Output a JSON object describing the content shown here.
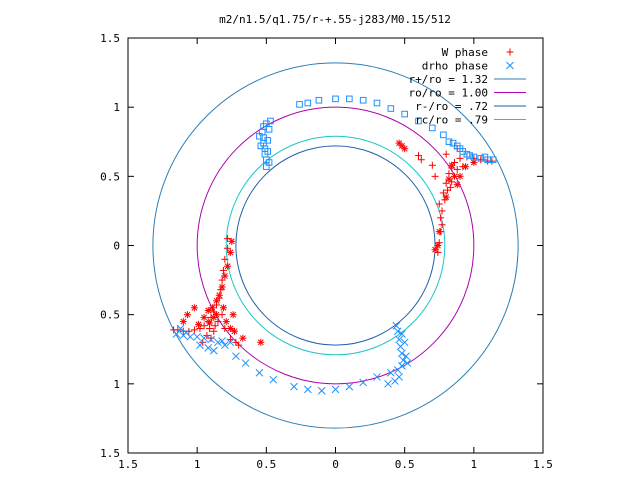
{
  "chart_data": {
    "type": "scatter",
    "title": "m2/n1.5/q1.75/r-+.55-j283/M0.15/512",
    "xlabel": "",
    "ylabel": "",
    "xlim": [
      -1.5,
      1.5
    ],
    "ylim": [
      -1.5,
      1.5
    ],
    "grid": false,
    "legend_position": "top-right",
    "x_ticks": [
      {
        "value": -1.5,
        "label": "1.5"
      },
      {
        "value": -1.0,
        "label": "1"
      },
      {
        "value": -0.5,
        "label": "0.5"
      },
      {
        "value": 0.0,
        "label": "0"
      },
      {
        "value": 0.5,
        "label": "0.5"
      },
      {
        "value": 1.0,
        "label": "1"
      },
      {
        "value": 1.5,
        "label": "1.5"
      }
    ],
    "y_ticks": [
      {
        "value": 1.5,
        "label": "1.5"
      },
      {
        "value": 1.0,
        "label": "1"
      },
      {
        "value": 0.5,
        "label": "0.5"
      },
      {
        "value": 0.0,
        "label": "0"
      },
      {
        "value": -0.5,
        "label": "0.5"
      },
      {
        "value": -1.0,
        "label": "1"
      },
      {
        "value": -1.5,
        "label": "1.5"
      }
    ],
    "circles": [
      {
        "name": "r+/ro = 1.32",
        "radius": 1.32,
        "color": "#2c7fb8"
      },
      {
        "name": "ro/ro = 1.00",
        "radius": 1.0,
        "color": "#b000b0"
      },
      {
        "name": "r-/ro = .72",
        "radius": 0.72,
        "color": "#1f5fa8"
      },
      {
        "name": "rc/ro = .79",
        "radius": 0.79,
        "color": "#19c8c8"
      }
    ],
    "series": [
      {
        "name": "W phase",
        "marker": "plus",
        "color": "#ff0000",
        "points": [
          [
            -0.78,
            0.05
          ],
          [
            -0.78,
            -0.02
          ],
          [
            -0.8,
            -0.1
          ],
          [
            -0.81,
            -0.18
          ],
          [
            -0.82,
            -0.25
          ],
          [
            -0.83,
            -0.32
          ],
          [
            -0.84,
            -0.38
          ],
          [
            -0.86,
            -0.43
          ],
          [
            -0.88,
            -0.48
          ],
          [
            -0.9,
            -0.52
          ],
          [
            -0.92,
            -0.55
          ],
          [
            -0.95,
            -0.58
          ],
          [
            -0.98,
            -0.6
          ],
          [
            -1.02,
            -0.61
          ],
          [
            -1.06,
            -0.62
          ],
          [
            -1.1,
            -0.62
          ],
          [
            -1.14,
            -0.61
          ],
          [
            -1.17,
            -0.61
          ],
          [
            -0.85,
            -0.55
          ],
          [
            -0.88,
            -0.62
          ],
          [
            -0.9,
            -0.67
          ],
          [
            -0.93,
            -0.65
          ],
          [
            -0.96,
            -0.7
          ],
          [
            -0.8,
            -0.6
          ],
          [
            -0.76,
            -0.68
          ],
          [
            -0.72,
            -0.7
          ],
          [
            -0.7,
            -0.72
          ],
          [
            -0.82,
            -0.5
          ],
          [
            -0.87,
            -0.58
          ],
          [
            -0.91,
            -0.6
          ],
          [
            0.75,
            0.3
          ],
          [
            0.76,
            0.2
          ],
          [
            0.76,
            0.1
          ],
          [
            0.75,
            0.02
          ],
          [
            0.74,
            -0.05
          ],
          [
            0.78,
            0.38
          ],
          [
            0.8,
            0.45
          ],
          [
            0.82,
            0.52
          ],
          [
            0.84,
            0.56
          ],
          [
            0.86,
            0.6
          ],
          [
            0.9,
            0.63
          ],
          [
            0.95,
            0.64
          ],
          [
            1.0,
            0.63
          ],
          [
            1.05,
            0.62
          ],
          [
            1.1,
            0.61
          ],
          [
            1.13,
            0.61
          ],
          [
            0.88,
            0.55
          ],
          [
            0.84,
            0.46
          ],
          [
            0.81,
            0.4
          ],
          [
            0.79,
            0.33
          ],
          [
            0.72,
            0.5
          ],
          [
            0.7,
            0.58
          ],
          [
            0.86,
            0.72
          ],
          [
            0.8,
            0.66
          ],
          [
            0.92,
            0.57
          ],
          [
            0.77,
            0.25
          ],
          [
            0.83,
            0.42
          ],
          [
            0.6,
            0.65
          ],
          [
            0.62,
            0.62
          ],
          [
            0.88,
            0.7
          ],
          [
            0.77,
            0.15
          ]
        ]
      },
      {
        "name": "W phase (star)",
        "marker": "star",
        "color": "#ff0000",
        "legend": false,
        "points": [
          [
            -0.75,
            0.03
          ],
          [
            -0.76,
            -0.05
          ],
          [
            -0.78,
            -0.15
          ],
          [
            -0.8,
            -0.22
          ],
          [
            -0.82,
            -0.3
          ],
          [
            -0.84,
            -0.36
          ],
          [
            -0.86,
            -0.4
          ],
          [
            -0.89,
            -0.45
          ],
          [
            -0.92,
            -0.47
          ],
          [
            -1.02,
            -0.45
          ],
          [
            -1.07,
            -0.5
          ],
          [
            -1.1,
            -0.55
          ],
          [
            -0.95,
            -0.52
          ],
          [
            -0.88,
            -0.52
          ],
          [
            -0.79,
            -0.55
          ],
          [
            -0.76,
            -0.6
          ],
          [
            -0.73,
            -0.62
          ],
          [
            -0.74,
            -0.5
          ],
          [
            -0.81,
            -0.45
          ],
          [
            -0.86,
            -0.5
          ],
          [
            -0.91,
            -0.56
          ],
          [
            -0.99,
            -0.57
          ],
          [
            -0.67,
            -0.67
          ],
          [
            -0.54,
            -0.7
          ],
          [
            0.48,
            0.72
          ],
          [
            0.5,
            0.7
          ],
          [
            0.46,
            0.74
          ],
          [
            0.86,
            0.5
          ],
          [
            0.82,
            0.48
          ],
          [
            0.88,
            0.44
          ],
          [
            0.9,
            0.5
          ],
          [
            0.84,
            0.58
          ],
          [
            0.94,
            0.57
          ],
          [
            1.0,
            0.6
          ],
          [
            0.75,
            0.1
          ],
          [
            0.74,
            0.0
          ],
          [
            0.72,
            -0.03
          ],
          [
            0.8,
            0.35
          ]
        ]
      },
      {
        "name": "drho phase",
        "marker": "cross",
        "color": "#1e90ff",
        "points": [
          [
            -1.15,
            -0.64
          ],
          [
            -1.1,
            -0.65
          ],
          [
            -1.05,
            -0.66
          ],
          [
            -1.0,
            -0.66
          ],
          [
            -0.95,
            -0.67
          ],
          [
            -0.9,
            -0.68
          ],
          [
            -0.85,
            -0.7
          ],
          [
            -0.8,
            -0.72
          ],
          [
            -0.72,
            -0.8
          ],
          [
            -0.65,
            -0.85
          ],
          [
            -0.55,
            -0.92
          ],
          [
            -0.45,
            -0.97
          ],
          [
            -0.3,
            -1.02
          ],
          [
            -0.2,
            -1.04
          ],
          [
            -0.1,
            -1.05
          ],
          [
            0.0,
            -1.04
          ],
          [
            0.1,
            -1.02
          ],
          [
            0.2,
            -0.99
          ],
          [
            0.3,
            -0.95
          ],
          [
            0.4,
            -0.92
          ],
          [
            0.45,
            -0.9
          ],
          [
            0.48,
            -0.87
          ],
          [
            0.49,
            -0.83
          ],
          [
            0.48,
            -0.78
          ],
          [
            0.47,
            -0.73
          ],
          [
            0.46,
            -0.68
          ],
          [
            0.45,
            -0.62
          ],
          [
            0.44,
            -0.58
          ],
          [
            0.48,
            -0.64
          ],
          [
            0.5,
            -0.7
          ],
          [
            0.51,
            -0.8
          ],
          [
            0.52,
            -0.85
          ],
          [
            0.46,
            -0.95
          ],
          [
            0.43,
            -0.98
          ],
          [
            0.38,
            -1.0
          ],
          [
            -1.12,
            -0.6
          ],
          [
            -1.08,
            -0.63
          ],
          [
            -0.98,
            -0.72
          ],
          [
            -0.92,
            -0.74
          ],
          [
            -0.88,
            -0.76
          ],
          [
            -0.82,
            -0.69
          ],
          [
            -0.76,
            -0.7
          ]
        ]
      },
      {
        "name": "drho phase (square)",
        "marker": "square",
        "color": "#1e90ff",
        "legend": false,
        "points": [
          [
            -0.5,
            0.57
          ],
          [
            -0.5,
            0.62
          ],
          [
            -0.51,
            0.66
          ],
          [
            -0.51,
            0.7
          ],
          [
            -0.52,
            0.74
          ],
          [
            -0.52,
            0.78
          ],
          [
            -0.53,
            0.82
          ],
          [
            -0.52,
            0.86
          ],
          [
            -0.5,
            0.88
          ],
          [
            -0.47,
            0.9
          ],
          [
            -0.48,
            0.84
          ],
          [
            -0.49,
            0.76
          ],
          [
            -0.49,
            0.68
          ],
          [
            -0.48,
            0.6
          ],
          [
            -0.55,
            0.79
          ],
          [
            -0.54,
            0.72
          ],
          [
            -0.26,
            1.02
          ],
          [
            -0.2,
            1.03
          ],
          [
            -0.12,
            1.05
          ],
          [
            0.0,
            1.06
          ],
          [
            0.1,
            1.06
          ],
          [
            0.2,
            1.05
          ],
          [
            0.3,
            1.03
          ],
          [
            0.4,
            0.99
          ],
          [
            0.5,
            0.95
          ],
          [
            0.6,
            0.9
          ],
          [
            0.7,
            0.85
          ],
          [
            0.78,
            0.8
          ],
          [
            0.85,
            0.74
          ],
          [
            0.9,
            0.7
          ],
          [
            0.95,
            0.66
          ],
          [
            1.0,
            0.64
          ],
          [
            1.05,
            0.63
          ],
          [
            1.1,
            0.62
          ],
          [
            1.14,
            0.62
          ],
          [
            0.88,
            0.72
          ],
          [
            0.92,
            0.68
          ],
          [
            0.97,
            0.65
          ],
          [
            1.08,
            0.64
          ],
          [
            0.82,
            0.75
          ]
        ]
      }
    ]
  }
}
